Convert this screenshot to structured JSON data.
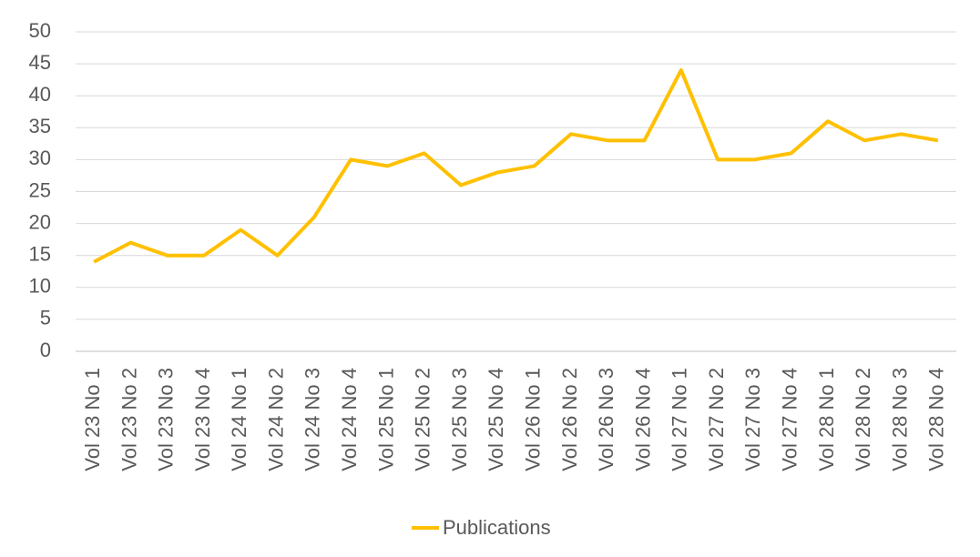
{
  "chart_data": {
    "type": "line",
    "categories": [
      "Vol 23 No 1",
      "Vol 23 No 2",
      "Vol 23 No 3",
      "Vol 23 No 4",
      "Vol 24 No 1",
      "Vol 24 No 2",
      "Vol 24 No 3",
      "Vol 24 No 4",
      "Vol 25 No 1",
      "Vol 25 No 2",
      "Vol 25 No 3",
      "Vol 25 No 4",
      "Vol 26 No 1",
      "Vol 26 No 2",
      "Vol 26 No 3",
      "Vol 26 No 4",
      "Vol 27 No 1",
      "Vol 27 No 2",
      "Vol 27 No 3",
      "Vol 27 No 4",
      "Vol 28 No 1",
      "Vol 28 No 2",
      "Vol 28 No 3",
      "Vol 28 No 4"
    ],
    "series": [
      {
        "name": "Publications",
        "color": "#FFC000",
        "values": [
          14,
          17,
          15,
          15,
          19,
          15,
          21,
          30,
          29,
          31,
          26,
          28,
          29,
          34,
          33,
          33,
          44,
          30,
          30,
          31,
          36,
          33,
          34,
          33
        ]
      }
    ],
    "ylim": [
      0,
      50
    ],
    "yticks": [
      0,
      5,
      10,
      15,
      20,
      25,
      30,
      35,
      40,
      45,
      50
    ],
    "grid": true,
    "legend": "bottom"
  }
}
